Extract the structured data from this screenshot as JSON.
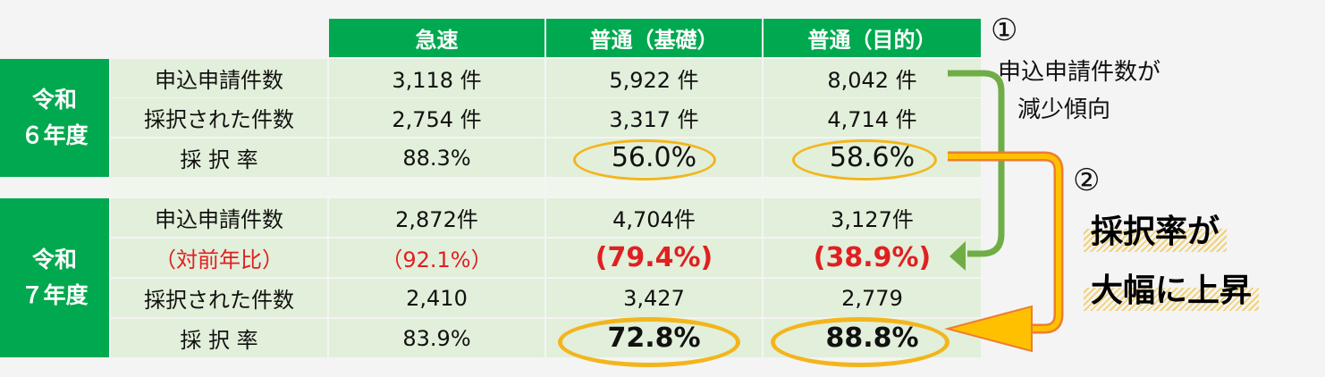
{
  "headers": [
    "急速",
    "普通（基礎）",
    "普通（目的）"
  ],
  "year6": {
    "label_line1": "令和",
    "label_line2": "６年度",
    "rows": [
      {
        "label": "申込申請件数",
        "values": [
          "3,118 件",
          "5,922 件",
          "8,042 件"
        ]
      },
      {
        "label": "採択された件数",
        "values": [
          "2,754 件",
          "3,317 件",
          "4,714 件"
        ]
      },
      {
        "label": "採 択 率",
        "values": [
          "88.3%",
          "56.0%",
          "58.6%"
        ]
      }
    ]
  },
  "year7": {
    "label_line1": "令和",
    "label_line2": "７年度",
    "rows": [
      {
        "label": "申込申請件数",
        "values": [
          "2,872件",
          "4,704件",
          "3,127件"
        ]
      },
      {
        "label": "（対前年比）",
        "values": [
          "（92.1%）",
          "(79.4%)",
          "(38.9%)"
        ]
      },
      {
        "label": "採択された件数",
        "values": [
          "2,410",
          "3,427",
          "2,779"
        ]
      },
      {
        "label": "採 択 率",
        "values": [
          "83.9%",
          "72.8%",
          "88.8%"
        ]
      }
    ]
  },
  "notes": {
    "n1_mark": "①",
    "n1_line1": "申込申請件数が",
    "n1_line2": "減少傾向",
    "n2_mark": "②",
    "n2_line1": "採択率が",
    "n2_line2": "大幅に上昇"
  },
  "colors": {
    "header_green": "#00a94f",
    "cell_green": "#e2efda",
    "highlight": "#f3b51c",
    "arrow_green": "#70ad47",
    "arrow_orange": "#ffc000",
    "red": "#e02020"
  }
}
